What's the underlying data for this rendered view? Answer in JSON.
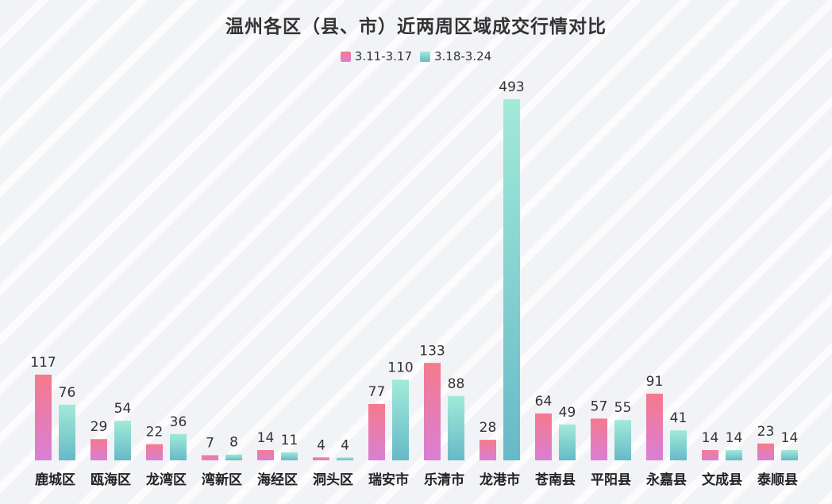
{
  "title": "温州各区（县、市）近两周区域成交行情对比",
  "chart_data": {
    "type": "bar",
    "title": "温州各区（县、市）近两周区域成交行情对比",
    "categories": [
      "鹿城区",
      "瓯海区",
      "龙湾区",
      "湾新区",
      "海经区",
      "洞头区",
      "瑞安市",
      "乐清市",
      "龙港市",
      "苍南县",
      "平阳县",
      "永嘉县",
      "文成县",
      "泰顺县"
    ],
    "series": [
      {
        "name": "3.11-3.17",
        "values": [
          117,
          29,
          22,
          7,
          14,
          4,
          77,
          133,
          28,
          64,
          57,
          91,
          14,
          23
        ],
        "color_top": "#f57a8c",
        "color_bottom": "#d97fd6"
      },
      {
        "name": "3.18-3.24",
        "values": [
          76,
          54,
          36,
          8,
          11,
          4,
          110,
          88,
          493,
          49,
          55,
          41,
          14,
          14
        ],
        "color_top": "#a2ead8",
        "color_bottom": "#66b9c8"
      }
    ],
    "xlabel": "",
    "ylabel": "",
    "ylim": [
      0,
      493
    ],
    "grid": false,
    "legend_position": "top-center"
  }
}
